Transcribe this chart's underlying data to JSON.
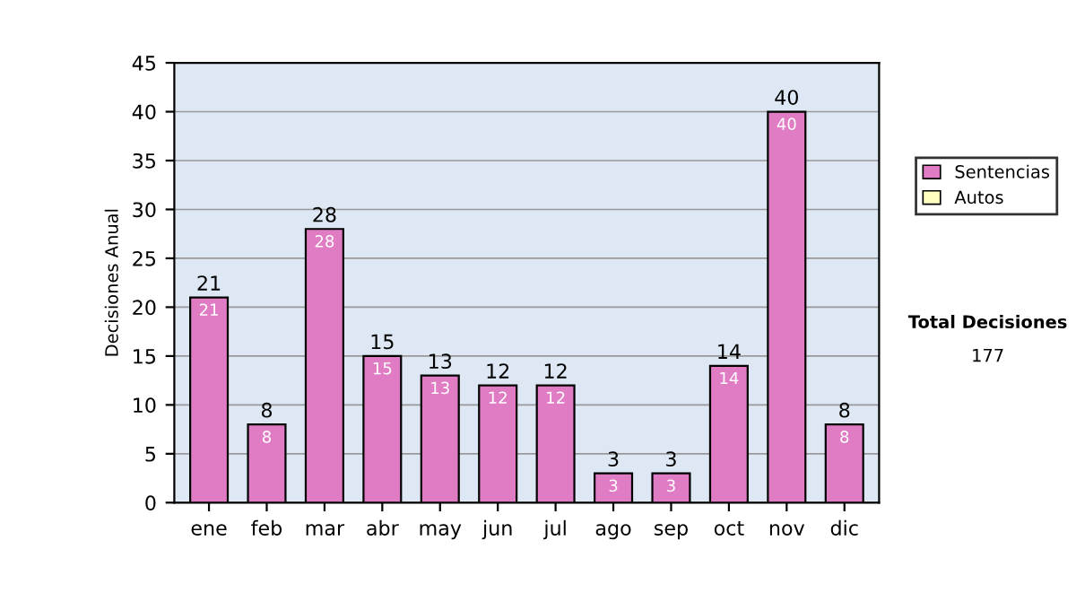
{
  "chart_data": {
    "type": "bar",
    "stacked": true,
    "ylabel": "Decisiones Anual",
    "categories": [
      "ene",
      "feb",
      "mar",
      "abr",
      "may",
      "jun",
      "jul",
      "ago",
      "sep",
      "oct",
      "nov",
      "dic"
    ],
    "series": [
      {
        "name": "Sentencias",
        "color": "#e07cc4",
        "values": [
          21,
          8,
          28,
          15,
          13,
          12,
          12,
          3,
          3,
          14,
          40,
          8
        ],
        "value_labels": [
          "21",
          "8",
          "28",
          "15",
          "13",
          "12",
          "12",
          "3",
          "3",
          "14",
          "40",
          "8"
        ]
      },
      {
        "name": "Autos",
        "color": "#ffffc0",
        "values": [
          0,
          0,
          0,
          0,
          0,
          0,
          0,
          0,
          0,
          0,
          0,
          0
        ]
      }
    ],
    "totals": [
      "21",
      "8",
      "28",
      "15",
      "13",
      "12",
      "12",
      "3",
      "3",
      "14",
      "40",
      "8"
    ],
    "ylim": [
      0,
      45
    ],
    "yticks": [
      0,
      5,
      10,
      15,
      20,
      25,
      30,
      35,
      40,
      45
    ],
    "grid": "y",
    "legend": "right",
    "annotations": [
      "Total Decisiones",
      "177"
    ]
  }
}
